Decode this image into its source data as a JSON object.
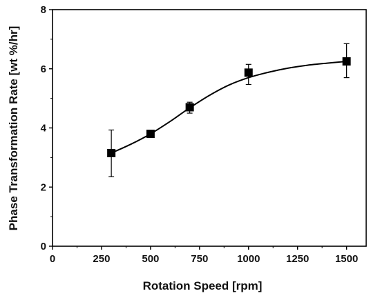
{
  "chart_data": {
    "type": "scatter",
    "title": "",
    "xlabel": "Rotation Speed [rpm]",
    "ylabel": "Phase Transformation Rate [wt %/hr]",
    "xlim": [
      0,
      1600
    ],
    "ylim": [
      0,
      8
    ],
    "x_ticks": [
      "0",
      "250",
      "500",
      "750",
      "1000",
      "1250",
      "1500"
    ],
    "y_ticks": [
      "0",
      "2",
      "4",
      "6",
      "8"
    ],
    "grid": false,
    "legend": "none",
    "series": [
      {
        "marker": "square",
        "color": "#000000",
        "points": [
          {
            "x": 300,
            "y": 3.15,
            "err_low": 2.35,
            "err_high": 3.93
          },
          {
            "x": 500,
            "y": 3.8,
            "err_low": 3.73,
            "err_high": 3.88
          },
          {
            "x": 700,
            "y": 4.7,
            "err_low": 4.5,
            "err_high": 4.87
          },
          {
            "x": 1000,
            "y": 5.87,
            "err_low": 5.47,
            "err_high": 6.15
          },
          {
            "x": 1500,
            "y": 6.25,
            "err_low": 5.7,
            "err_high": 6.85
          }
        ]
      }
    ],
    "fit_curve": {
      "color": "#000000",
      "x": [
        300,
        400,
        500,
        600,
        700,
        800,
        900,
        1000,
        1100,
        1200,
        1300,
        1400,
        1500
      ],
      "y": [
        3.15,
        3.45,
        3.8,
        4.22,
        4.68,
        5.1,
        5.45,
        5.7,
        5.88,
        6.02,
        6.12,
        6.19,
        6.25
      ]
    }
  }
}
